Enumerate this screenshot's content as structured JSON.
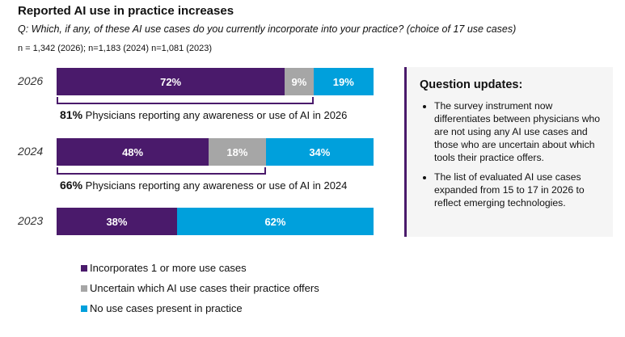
{
  "chart_data": {
    "type": "bar",
    "orientation": "horizontal-stacked-100",
    "title": "Reported AI use in practice increases",
    "subtitle": "Q: Which, if any, of these AI use cases do you currently incorporate into your practice? (choice of 17 use cases)",
    "note": "n = 1,342 (2026); n=1,183 (2024) n=1,081 (2023)",
    "categories": [
      "2026",
      "2024",
      "2023"
    ],
    "series": [
      {
        "name": "Incorporates 1 or more use cases",
        "color": "#4a1a6b",
        "values": [
          72,
          48,
          38
        ],
        "labels": [
          "72%",
          "48%",
          "38%"
        ]
      },
      {
        "name": "Uncertain which AI use cases their practice offers",
        "color": "#a6a6a6",
        "values": [
          9,
          18,
          0
        ],
        "labels": [
          "9%",
          "18%",
          ""
        ]
      },
      {
        "name": "No use cases present in practice",
        "color": "#00a0dc",
        "values": [
          19,
          34,
          62
        ],
        "labels": [
          "19%",
          "34%",
          "62%"
        ]
      }
    ],
    "annotations": [
      {
        "year": "2026",
        "value": 81,
        "bold": "81%",
        "text": "Physicians reporting any awareness or use of AI in 2026"
      },
      {
        "year": "2024",
        "value": 66,
        "bold": "66%",
        "text": "Physicians reporting any awareness or use of AI in 2024"
      }
    ],
    "legend_placement": "bottom"
  },
  "sidebox": {
    "heading": "Question updates:",
    "bullets": [
      "The survey instrument now differentiates between physicians who are not using any AI use cases and those who are uncertain about which tools their practice offers.",
      "The list of evaluated AI use cases expanded from 15 to 17 in 2026 to reflect emerging technologies."
    ]
  }
}
